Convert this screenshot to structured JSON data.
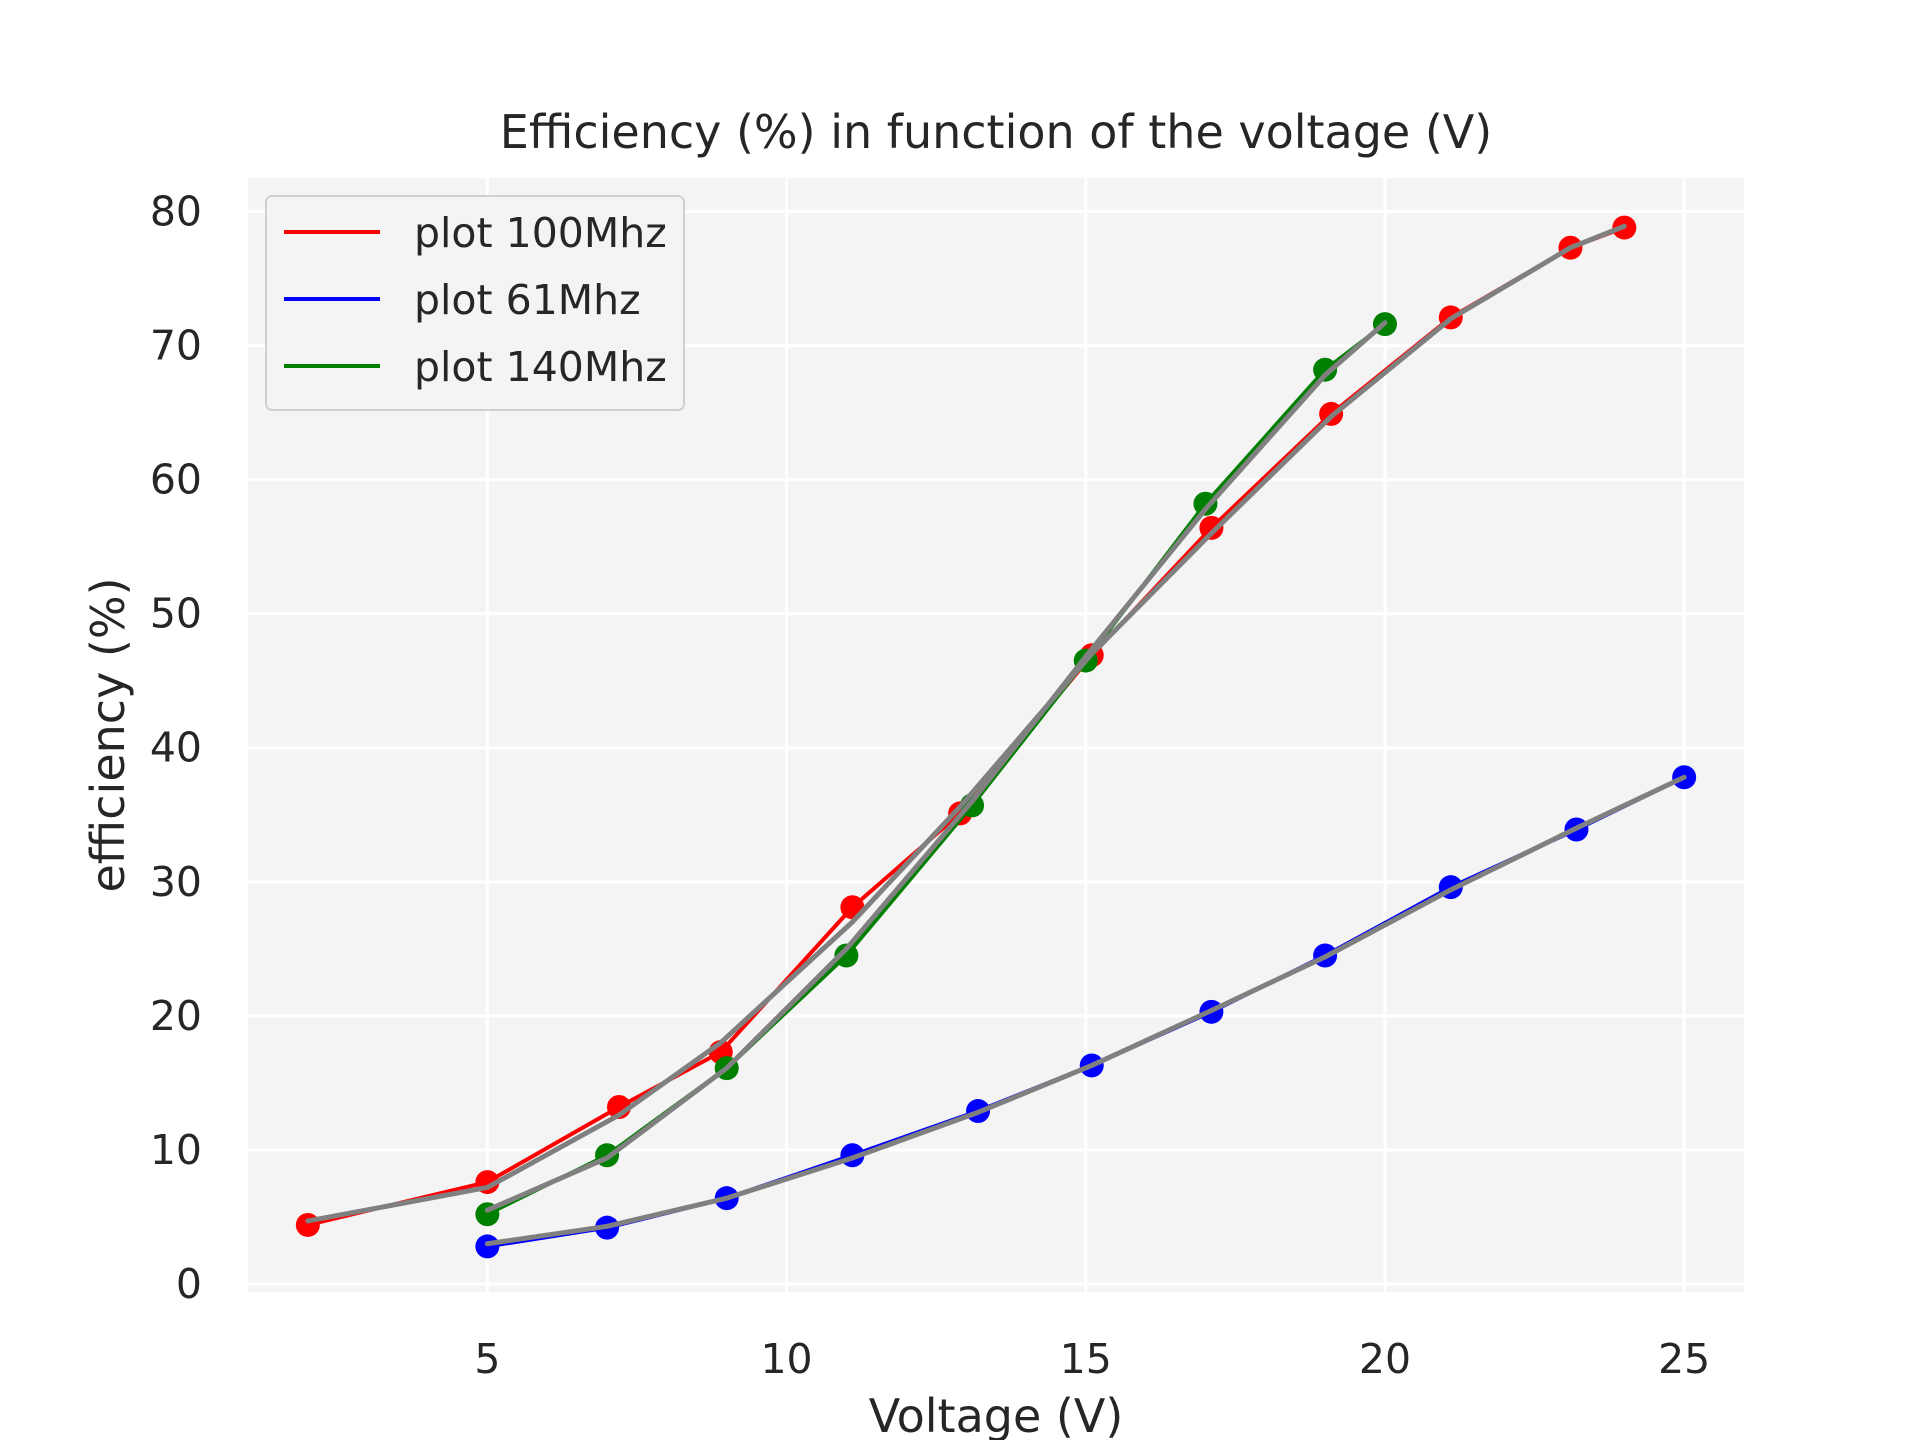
{
  "chart_data": {
    "type": "line",
    "title": "Efficiency (%) in function of the voltage (V)",
    "xlabel": "Voltage (V)",
    "ylabel": "efficiency (%)",
    "xlim": [
      1,
      26
    ],
    "ylim": [
      -0.6,
      82.5
    ],
    "xticks": [
      5,
      10,
      15,
      20,
      25
    ],
    "yticks": [
      0,
      10,
      20,
      30,
      40,
      50,
      60,
      70,
      80
    ],
    "grid": true,
    "legend_position": "top-left",
    "series": [
      {
        "name": "plot 100Mhz",
        "color": "#ff0000",
        "x": [
          2,
          5,
          7.2,
          8.9,
          11.1,
          12.9,
          15.1,
          17.1,
          19.1,
          21.1,
          23.1,
          24
        ],
        "y": [
          4.4,
          7.6,
          13.2,
          17.3,
          28.1,
          35.1,
          46.9,
          56.4,
          64.9,
          72.1,
          77.3,
          78.8
        ],
        "fit": [
          4.7,
          7.2,
          12.6,
          18.0,
          27.0,
          35.6,
          47.0,
          56.0,
          64.7,
          72.0,
          77.3,
          78.9
        ]
      },
      {
        "name": "plot 61Mhz",
        "color": "#0000ff",
        "x": [
          5,
          7,
          9,
          11.1,
          13.2,
          15.1,
          17.1,
          19,
          21.1,
          23.2,
          25
        ],
        "y": [
          2.8,
          4.2,
          6.4,
          9.6,
          12.9,
          16.3,
          20.3,
          24.5,
          29.6,
          33.9,
          37.8
        ],
        "fit": [
          3.0,
          4.3,
          6.4,
          9.4,
          12.8,
          16.3,
          20.4,
          24.4,
          29.4,
          34.0,
          37.8
        ]
      },
      {
        "name": "plot 140Mhz",
        "color": "#008000",
        "x": [
          5,
          7,
          9,
          11,
          13.1,
          15,
          17,
          19,
          20
        ],
        "y": [
          5.2,
          9.6,
          16.1,
          24.5,
          35.7,
          46.5,
          58.2,
          68.2,
          71.6
        ],
        "fit": [
          5.5,
          9.4,
          16.1,
          25.0,
          36.0,
          46.8,
          57.8,
          67.8,
          71.7
        ]
      }
    ],
    "fit_color": "#808080"
  }
}
